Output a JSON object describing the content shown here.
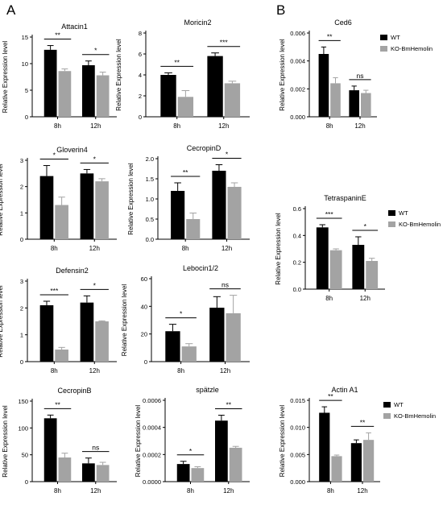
{
  "figure": {
    "panel_letters": [
      "A",
      "B"
    ],
    "colors": {
      "wt": "#000000",
      "ko": "#a3a3a3"
    }
  },
  "chart_data": [
    {
      "type": "bar",
      "title": "Attacin1",
      "ylabel": "Relative Expression level",
      "categories": [
        "8h",
        "12h"
      ],
      "ylim": [
        0,
        15
      ],
      "yticks": [
        "0",
        "5",
        "10",
        "15"
      ],
      "series": [
        {
          "key": "wt",
          "values": [
            12.6,
            9.7
          ],
          "errors": [
            0.8,
            0.8
          ]
        },
        {
          "key": "ko",
          "values": [
            8.6,
            7.8
          ],
          "errors": [
            0.4,
            0.6
          ]
        }
      ],
      "significance": [
        "**",
        "*"
      ]
    },
    {
      "type": "bar",
      "title": "Moricin2",
      "ylabel": "Relative Expression level",
      "categories": [
        "8h",
        "12h"
      ],
      "ylim": [
        0,
        8
      ],
      "yticks": [
        "0",
        "2",
        "4",
        "6",
        "8"
      ],
      "series": [
        {
          "key": "wt",
          "values": [
            4.0,
            5.8
          ],
          "errors": [
            0.2,
            0.3
          ]
        },
        {
          "key": "ko",
          "values": [
            1.9,
            3.2
          ],
          "errors": [
            0.6,
            0.2
          ]
        }
      ],
      "significance": [
        "**",
        "***"
      ]
    },
    {
      "type": "bar",
      "title": "Ced6",
      "ylabel": "Relative Expression level",
      "categories": [
        "8h",
        "12h"
      ],
      "ylim": [
        0,
        0.006
      ],
      "yticks": [
        "0.000",
        "0.002",
        "0.004",
        "0.006"
      ],
      "series": [
        {
          "name": "WT",
          "key": "wt",
          "values": [
            0.0045,
            0.0019
          ],
          "errors": [
            0.0005,
            0.0003
          ]
        },
        {
          "name": "KO-BmHemolin",
          "key": "ko",
          "values": [
            0.0024,
            0.0017
          ],
          "errors": [
            0.0004,
            0.0002
          ]
        }
      ],
      "significance": [
        "**",
        "ns"
      ],
      "legend": "right"
    },
    {
      "type": "bar",
      "title": "Gloverin4",
      "ylabel": "Relative Expression level",
      "categories": [
        "8h",
        "12h"
      ],
      "ylim": [
        0,
        3
      ],
      "yticks": [
        "0",
        "1",
        "2",
        "3"
      ],
      "series": [
        {
          "key": "wt",
          "values": [
            2.4,
            2.5
          ],
          "errors": [
            0.4,
            0.15
          ]
        },
        {
          "key": "ko",
          "values": [
            1.3,
            2.2
          ],
          "errors": [
            0.3,
            0.1
          ]
        }
      ],
      "significance": [
        "*",
        "*"
      ]
    },
    {
      "type": "bar",
      "title": "CecropinD",
      "ylabel": "Relative Expression level",
      "categories": [
        "8h",
        "12h"
      ],
      "ylim": [
        0,
        2.0
      ],
      "yticks": [
        "0.0",
        "0.5",
        "1.0",
        "1.5",
        "2.0"
      ],
      "series": [
        {
          "key": "wt",
          "values": [
            1.2,
            1.7
          ],
          "errors": [
            0.2,
            0.15
          ]
        },
        {
          "key": "ko",
          "values": [
            0.5,
            1.3
          ],
          "errors": [
            0.15,
            0.1
          ]
        }
      ],
      "significance": [
        "**",
        "*"
      ]
    },
    {
      "type": "bar",
      "title": "TetraspaninE",
      "ylabel": "Relative Expression level",
      "categories": [
        "8h",
        "12h"
      ],
      "ylim": [
        0,
        0.6
      ],
      "yticks": [
        "0.0",
        "0.2",
        "0.4",
        "0.6"
      ],
      "series": [
        {
          "name": "WT",
          "key": "wt",
          "values": [
            0.46,
            0.33
          ],
          "errors": [
            0.02,
            0.06
          ]
        },
        {
          "name": "KO-BmHemolin",
          "key": "ko",
          "values": [
            0.29,
            0.21
          ],
          "errors": [
            0.01,
            0.02
          ]
        }
      ],
      "significance": [
        "***",
        "*"
      ],
      "legend": "right"
    },
    {
      "type": "bar",
      "title": "Defensin2",
      "ylabel": "Relative Expression level",
      "categories": [
        "8h",
        "12h"
      ],
      "ylim": [
        0,
        3
      ],
      "yticks": [
        "0",
        "1",
        "2",
        "3"
      ],
      "series": [
        {
          "key": "wt",
          "values": [
            2.1,
            2.2
          ],
          "errors": [
            0.15,
            0.25
          ]
        },
        {
          "key": "ko",
          "values": [
            0.45,
            1.5
          ],
          "errors": [
            0.08,
            0.02
          ]
        }
      ],
      "significance": [
        "***",
        "*"
      ]
    },
    {
      "type": "bar",
      "title": "Lebocin1/2",
      "ylabel": "Relative Expression level",
      "categories": [
        "8h",
        "12h"
      ],
      "ylim": [
        0,
        60
      ],
      "yticks": [
        "0",
        "20",
        "40",
        "60"
      ],
      "series": [
        {
          "key": "wt",
          "values": [
            22,
            39
          ],
          "errors": [
            5,
            8
          ]
        },
        {
          "key": "ko",
          "values": [
            11,
            35
          ],
          "errors": [
            2,
            13
          ]
        }
      ],
      "significance": [
        "*",
        "ns"
      ]
    },
    {
      "type": "bar",
      "title": "CecropinB",
      "ylabel": "Relative Expression level",
      "categories": [
        "8h",
        "12h"
      ],
      "ylim": [
        0,
        150
      ],
      "yticks": [
        "0",
        "50",
        "100",
        "150"
      ],
      "series": [
        {
          "key": "wt",
          "values": [
            118,
            34
          ],
          "errors": [
            6,
            10
          ]
        },
        {
          "key": "ko",
          "values": [
            45,
            31
          ],
          "errors": [
            8,
            5
          ]
        }
      ],
      "significance": [
        "**",
        "ns"
      ]
    },
    {
      "type": "bar",
      "title": "spätzle",
      "ylabel": "Relative Expression level",
      "categories": [
        "8h",
        "12h"
      ],
      "ylim": [
        0,
        0.0006
      ],
      "yticks": [
        "0.0000",
        "0.0002",
        "0.0004",
        "0.0006"
      ],
      "series": [
        {
          "key": "wt",
          "values": [
            0.00013,
            0.00045
          ],
          "errors": [
            2e-05,
            4e-05
          ]
        },
        {
          "key": "ko",
          "values": [
            0.0001,
            0.00025
          ],
          "errors": [
            1e-05,
            1e-05
          ]
        }
      ],
      "significance": [
        "*",
        "**"
      ]
    },
    {
      "type": "bar",
      "title": "Actin A1",
      "ylabel": "Relative Expression level",
      "categories": [
        "8h",
        "12h"
      ],
      "ylim": [
        0,
        0.015
      ],
      "yticks": [
        "0.000",
        "0.005",
        "0.010",
        "0.015"
      ],
      "series": [
        {
          "name": "WT",
          "key": "wt",
          "values": [
            0.0127,
            0.0071
          ],
          "errors": [
            0.0011,
            0.0006
          ]
        },
        {
          "name": "KO-BmHemolin",
          "key": "ko",
          "values": [
            0.0047,
            0.0077
          ],
          "errors": [
            0.0002,
            0.0013
          ]
        }
      ],
      "significance": [
        "**",
        "**"
      ],
      "legend": "right"
    }
  ]
}
